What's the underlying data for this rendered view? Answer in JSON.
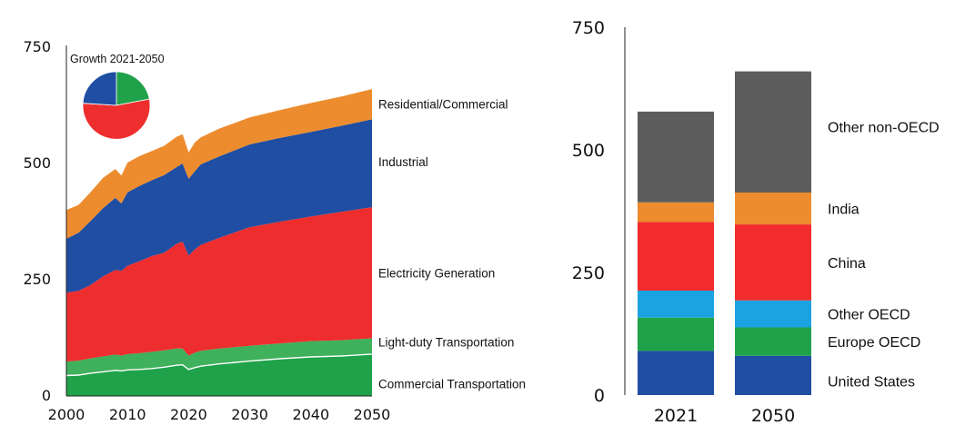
{
  "chart_data": [
    {
      "type": "area",
      "stacked": true,
      "ylim": [
        0,
        750
      ],
      "xlim": [
        2000,
        2050
      ],
      "yticks": [
        "0",
        "250",
        "500",
        "750"
      ],
      "xticks": [
        "2000",
        "2010",
        "2020",
        "2030",
        "2040",
        "2050"
      ],
      "x": [
        2000,
        2002,
        2004,
        2006,
        2008,
        2009,
        2010,
        2012,
        2014,
        2016,
        2018,
        2019,
        2020,
        2021,
        2022,
        2025,
        2030,
        2035,
        2040,
        2045,
        2050
      ],
      "series": [
        {
          "name": "Commercial Transportation",
          "color": "#1fa24a",
          "values": [
            44,
            45,
            49,
            52,
            55,
            54,
            56,
            57,
            59,
            62,
            66,
            67,
            57,
            61,
            64,
            69,
            75,
            80,
            84,
            86,
            90
          ]
        },
        {
          "name": "Light-duty Transportation",
          "color": "#3fb05c",
          "values": [
            30,
            31,
            32,
            33,
            34,
            33,
            34,
            35,
            36,
            36,
            36,
            35,
            30,
            32,
            33,
            33,
            33,
            33,
            34,
            34,
            34
          ]
        },
        {
          "name": "Electricity Generation",
          "color": "#ee2e2e",
          "values": [
            148,
            150,
            158,
            172,
            182,
            182,
            190,
            198,
            206,
            210,
            225,
            230,
            215,
            222,
            228,
            238,
            255,
            262,
            268,
            276,
            282
          ]
        },
        {
          "name": "Industrial",
          "color": "#1f4ea3",
          "values": [
            116,
            125,
            138,
            147,
            155,
            145,
            158,
            162,
            163,
            167,
            165,
            168,
            165,
            168,
            173,
            175,
            178,
            180,
            182,
            185,
            189
          ]
        },
        {
          "name": "Residential/Commercial",
          "color": "#ec8c2e",
          "values": [
            62,
            60,
            62,
            65,
            62,
            60,
            64,
            64,
            63,
            63,
            65,
            63,
            57,
            62,
            58,
            60,
            58,
            60,
            62,
            63,
            65
          ]
        }
      ],
      "labels": [
        "Residential/Commercial",
        "Industrial",
        "Electricity Generation",
        "Light-duty Transportation",
        "Commercial Transportation"
      ],
      "inset_pie": {
        "title": "Growth 2021-2050",
        "slices": [
          {
            "color": "#1fa24a",
            "value": 22
          },
          {
            "color": "#ee2e2e",
            "value": 54
          },
          {
            "color": "#1f4ea3",
            "value": 24
          }
        ]
      }
    },
    {
      "type": "bar",
      "stacked": true,
      "ylim": [
        0,
        750
      ],
      "yticks": [
        "0",
        "250",
        "500",
        "750"
      ],
      "categories": [
        "2021",
        "2050"
      ],
      "series": [
        {
          "name": "United States",
          "color": "#1f4ea3",
          "values": [
            90,
            80
          ]
        },
        {
          "name": "Europe OECD",
          "color": "#1fa24a",
          "values": [
            68,
            58
          ]
        },
        {
          "name": "Other OECD",
          "color": "#1aa3e0",
          "values": [
            55,
            55
          ]
        },
        {
          "name": "China",
          "color": "#f22c2c",
          "values": [
            140,
            155
          ]
        },
        {
          "name": "India",
          "color": "#ec8c2e",
          "values": [
            40,
            65
          ]
        },
        {
          "name": "Other non-OECD",
          "color": "#5d5d5d",
          "values": [
            185,
            247
          ]
        }
      ]
    }
  ]
}
